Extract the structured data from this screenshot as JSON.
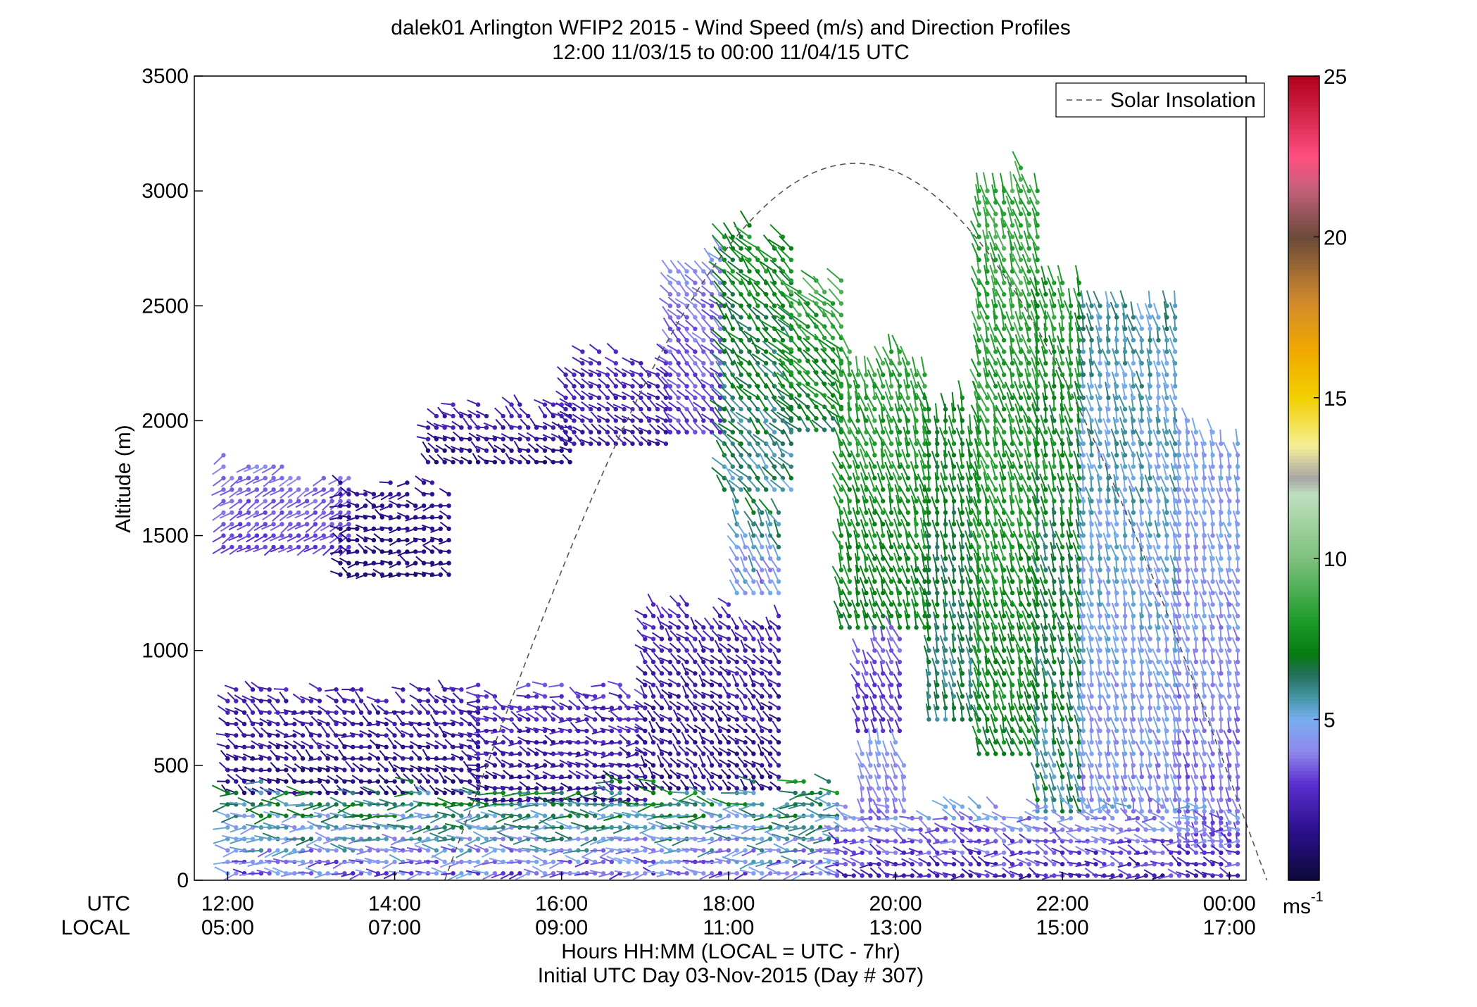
{
  "chart_data": {
    "type": "wind-barb-profile",
    "title": "dalek01 Arlington WFIP2 2015 - Wind Speed (m/s) and Direction Profiles",
    "subtitle": "12:00 11/03/15 to 00:00 11/04/15  UTC",
    "ylabel": "Altitude (m)",
    "xlabel": "Hours HH:MM  (LOCAL = UTC - 7hr)",
    "xlabel2": "Initial UTC Day 03-Nov-2015 (Day # 307)",
    "xrow_label_utc": "UTC",
    "xrow_label_local": "LOCAL",
    "ylim": [
      0,
      3500
    ],
    "y_ticks": [
      "0",
      "500",
      "1000",
      "1500",
      "2000",
      "2500",
      "3000",
      "3500"
    ],
    "x_range_hours": [
      11.6,
      24.2
    ],
    "x_ticks_utc": [
      "12:00",
      "14:00",
      "16:00",
      "18:00",
      "20:00",
      "22:00",
      "00:00"
    ],
    "x_ticks_local": [
      "05:00",
      "07:00",
      "09:00",
      "11:00",
      "13:00",
      "15:00",
      "17:00"
    ],
    "x_tick_hours": [
      12,
      14,
      16,
      18,
      20,
      22,
      24
    ],
    "legend": {
      "label": "Solar Insolation",
      "position": "top-right",
      "style": "dashed gray"
    },
    "solar_insolation": {
      "rise_hour": 14.6,
      "peak_hour": 19.75,
      "peak_altitude": 3120,
      "set_hour": 24.45
    },
    "colorbar": {
      "ticks": [
        "5",
        "10",
        "15",
        "20",
        "25"
      ],
      "tick_values": [
        5,
        10,
        15,
        20,
        25
      ],
      "range": [
        0,
        25
      ],
      "unit_label": "ms",
      "unit_exp": "-1",
      "colors": [
        [
          0.0,
          "#0d0a3a"
        ],
        [
          1.5,
          "#2a0f8a"
        ],
        [
          3.0,
          "#5a2fd0"
        ],
        [
          4.0,
          "#8f88ec"
        ],
        [
          5.0,
          "#79aef0"
        ],
        [
          5.6,
          "#4a9ab0"
        ],
        [
          6.4,
          "#22705a"
        ],
        [
          7.0,
          "#067a12"
        ],
        [
          8.0,
          "#1a9a28"
        ],
        [
          10.0,
          "#7dc07d"
        ],
        [
          12.0,
          "#bfe0bf"
        ],
        [
          12.5,
          "#a6a6a6"
        ],
        [
          13.5,
          "#f4ef96"
        ],
        [
          15.0,
          "#f2d000"
        ],
        [
          16.5,
          "#f0a800"
        ],
        [
          18.0,
          "#d18a2c"
        ],
        [
          20.0,
          "#6b4a3a"
        ],
        [
          21.5,
          "#c5607a"
        ],
        [
          22.5,
          "#ff4e80"
        ],
        [
          25.0,
          "#b0001a"
        ]
      ]
    },
    "segments": [
      {
        "t0": 11.95,
        "t1": 13.45,
        "gates": [
          1450,
          1800
        ],
        "speed": [
          2.8,
          4.2
        ],
        "dir": [
          225,
          250
        ]
      },
      {
        "t0": 13.35,
        "t1": 14.65,
        "gates": [
          1330,
          1720
        ],
        "speed": [
          0.8,
          2.0
        ],
        "dir": [
          240,
          320
        ]
      },
      {
        "t0": 14.4,
        "t1": 16.1,
        "gates": [
          1820,
          2050
        ],
        "speed": [
          0.8,
          2.8
        ],
        "dir": [
          270,
          330
        ]
      },
      {
        "t0": 16.05,
        "t1": 17.3,
        "gates": [
          1900,
          2260
        ],
        "speed": [
          1.5,
          3.0
        ],
        "dir": [
          290,
          320
        ]
      },
      {
        "t0": 17.3,
        "t1": 17.95,
        "gates": [
          1950,
          2700
        ],
        "speed": [
          2.5,
          4.6
        ],
        "dir": [
          300,
          330
        ]
      },
      {
        "t0": 17.95,
        "t1": 18.75,
        "gates": [
          1700,
          2800
        ],
        "speed": [
          5.0,
          8.5
        ],
        "dir": [
          300,
          335
        ]
      },
      {
        "t0": 18.75,
        "t1": 19.35,
        "gates": [
          1960,
          2580
        ],
        "speed": [
          6.0,
          9.5
        ],
        "dir": [
          300,
          330
        ]
      },
      {
        "t0": 19.35,
        "t1": 20.4,
        "gates": [
          1100,
          2250
        ],
        "speed": [
          6.5,
          9.0
        ],
        "dir": [
          330,
          355
        ]
      },
      {
        "t0": 20.4,
        "t1": 21.0,
        "gates": [
          700,
          2050
        ],
        "speed": [
          5.5,
          8.0
        ],
        "dir": [
          340,
          360
        ]
      },
      {
        "t0": 21.0,
        "t1": 21.7,
        "gates": [
          550,
          3050
        ],
        "speed": [
          6.5,
          9.5
        ],
        "dir": [
          330,
          355
        ]
      },
      {
        "t0": 21.7,
        "t1": 22.25,
        "gates": [
          300,
          2600
        ],
        "speed": [
          5.0,
          9.0
        ],
        "dir": [
          335,
          360
        ]
      },
      {
        "t0": 22.25,
        "t1": 23.4,
        "gates": [
          300,
          2500
        ],
        "speed": [
          3.5,
          6.5
        ],
        "dir": [
          335,
          360
        ]
      },
      {
        "t0": 23.4,
        "t1": 24.1,
        "gates": [
          150,
          1950
        ],
        "speed": [
          3.0,
          5.5
        ],
        "dir": [
          335,
          360
        ]
      },
      {
        "t0": 12.0,
        "t1": 15.0,
        "gates": [
          380,
          820
        ],
        "speed": [
          0.8,
          2.8
        ],
        "dir": [
          260,
          330
        ]
      },
      {
        "t0": 15.0,
        "t1": 17.0,
        "gates": [
          350,
          820
        ],
        "speed": [
          1.0,
          3.5
        ],
        "dir": [
          250,
          320
        ]
      },
      {
        "t0": 17.0,
        "t1": 18.6,
        "gates": [
          400,
          1170
        ],
        "speed": [
          1.0,
          3.0
        ],
        "dir": [
          290,
          340
        ]
      },
      {
        "t0": 18.1,
        "t1": 18.6,
        "gates": [
          1250,
          1600
        ],
        "speed": [
          3.0,
          7.5
        ],
        "dir": [
          320,
          345
        ]
      },
      {
        "t0": 19.55,
        "t1": 20.1,
        "gates": [
          650,
          1050
        ],
        "speed": [
          2.5,
          4.0
        ],
        "dir": [
          320,
          350
        ]
      },
      {
        "t0": 19.6,
        "t1": 20.1,
        "gates": [
          300,
          600
        ],
        "speed": [
          3.5,
          5.0
        ],
        "dir": [
          330,
          355
        ]
      },
      {
        "t0": 12.0,
        "t1": 19.3,
        "gates": [
          30,
          380
        ],
        "speed": [
          2.5,
          8.0
        ],
        "dir": [
          240,
          300
        ]
      },
      {
        "t0": 19.3,
        "t1": 24.1,
        "gates": [
          20,
          300
        ],
        "speed": [
          1.5,
          5.5
        ],
        "dir": [
          250,
          320
        ]
      }
    ]
  }
}
